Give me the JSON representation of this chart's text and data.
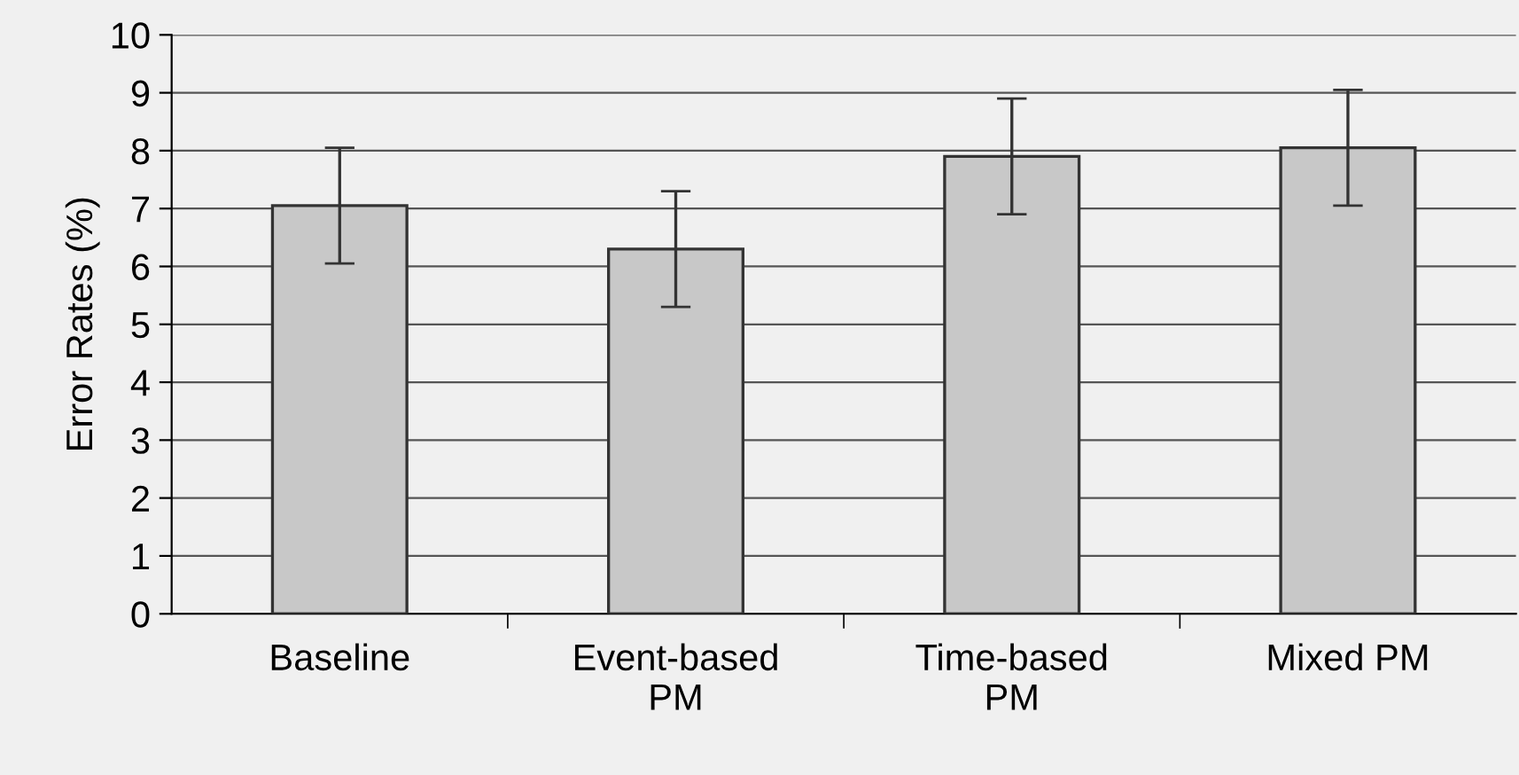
{
  "chart_data": {
    "type": "bar",
    "ylabel": "Error Rates (%)",
    "categories": [
      "Baseline",
      "Event-based\nPM",
      "Time-based\nPM",
      "Mixed PM"
    ],
    "values": [
      7.05,
      6.3,
      7.9,
      8.05
    ],
    "errors": [
      1,
      1,
      1,
      1
    ],
    "color": "#c8c8c8",
    "ylim": [
      0,
      10
    ],
    "yticks": [
      0,
      1,
      2,
      3,
      4,
      5,
      6,
      7,
      8,
      9,
      10
    ],
    "grid": "y"
  }
}
